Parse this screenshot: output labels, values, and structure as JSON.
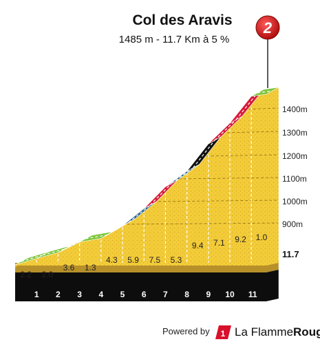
{
  "chart_data": {
    "type": "area",
    "title": "Col des Aravis",
    "subtitle": "1485 m - 11.7 Km à 5 %",
    "category_badge": "2",
    "end_distance_label": "11.7",
    "y_tick_labels": [
      "900m",
      "1000m",
      "1100m",
      "1200m",
      "1300m",
      "1400m"
    ],
    "y_ticks": [
      900,
      1000,
      1100,
      1200,
      1300,
      1400
    ],
    "ylim": [
      900,
      1485
    ],
    "x_ticks": [
      "1",
      "2",
      "3",
      "4",
      "5",
      "6",
      "7",
      "8",
      "9",
      "10",
      "11"
    ],
    "segments": [
      {
        "grade": "2.2",
        "color": "#7dc63c"
      },
      {
        "grade": "2.0",
        "color": "#7dc63c"
      },
      {
        "grade": "3.6",
        "color": "#7dc63c"
      },
      {
        "grade": "1.3",
        "color": "#7dc63c"
      },
      {
        "grade": "4.3",
        "color": "#1f5f8b"
      },
      {
        "grade": "5.9",
        "color": "#1f5f8b"
      },
      {
        "grade": "7.5",
        "color": "#d81b3a"
      },
      {
        "grade": "5.3",
        "color": "#1f5f8b"
      },
      {
        "grade": "9.4",
        "color": "#111111"
      },
      {
        "grade": "7.1",
        "color": "#d81b3a"
      },
      {
        "grade": "9.2",
        "color": "#d81b3a"
      },
      {
        "grade": "1.0",
        "color": "#7dc63c"
      }
    ]
  },
  "footer": {
    "powered_by": "Powered by",
    "brand_regular": "La Flamme",
    "brand_bold": "Rouge",
    "logo_digit": "1"
  }
}
